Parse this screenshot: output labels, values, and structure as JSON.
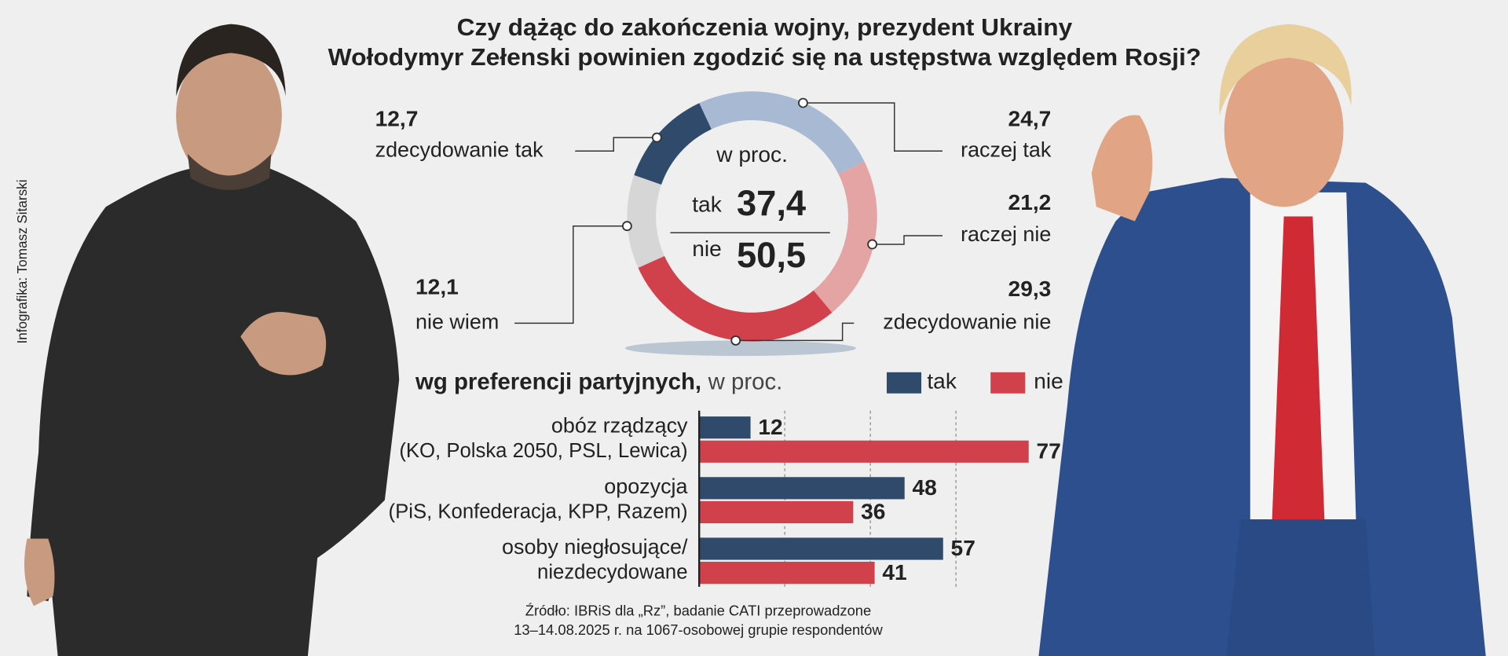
{
  "title": [
    "Czy dążąc do zakończenia wojny, prezydent Ukrainy",
    "Wołodymyr Zełenski powinien zgodzić się na ustępstwa względem Rosji?"
  ],
  "credit": "Infografika: Tomasz Sitarski",
  "source": [
    "Źródło: IBRiS dla „Rz”, badanie CATI przeprowadzone",
    "13–14.08.2025 r. na 1067-osobowej grupie respondentów"
  ],
  "chart_data": [
    {
      "type": "donut",
      "categories": [
        "raczej tak",
        "raczej nie",
        "zdecydowanie nie",
        "nie wiem",
        "zdecydowanie tak"
      ],
      "values": [
        24.7,
        21.2,
        29.3,
        12.1,
        12.7
      ],
      "value_labels": [
        "24,7",
        "21,2",
        "29,3",
        "12,1",
        "12,7"
      ],
      "colors": [
        "#a7b9d3",
        "#e5a4a4",
        "#d1414b",
        "#d6d6d6",
        "#2f4a6b"
      ],
      "center_label": "w proc.",
      "totals": {
        "names": [
          "tak",
          "nie"
        ],
        "values": [
          37.4,
          50.5
        ],
        "value_labels": [
          "37,4",
          "50,5"
        ],
        "colors": [
          "#2f4a6b",
          "#8e1b22"
        ]
      }
    },
    {
      "type": "bar",
      "orientation": "horizontal",
      "title": "wg preferencji partyjnych,",
      "subtitle": "w proc.",
      "categories": [
        "obóz rządzący",
        "opozycja",
        "osoby niegłosujące/"
      ],
      "category_sublabels": [
        "(KO, Polska 2050, PSL, Lewica)",
        "(PiS, Konfederacja, KPP, Razem)",
        "niezdecydowane"
      ],
      "series": [
        {
          "name": "tak",
          "color": "#2f4a6b",
          "values": [
            12,
            48,
            57
          ]
        },
        {
          "name": "nie",
          "color": "#d1414b",
          "values": [
            77,
            36,
            41
          ]
        }
      ],
      "xlim": [
        0,
        80
      ],
      "xticks": [
        20,
        40,
        60
      ],
      "grid": true
    }
  ]
}
